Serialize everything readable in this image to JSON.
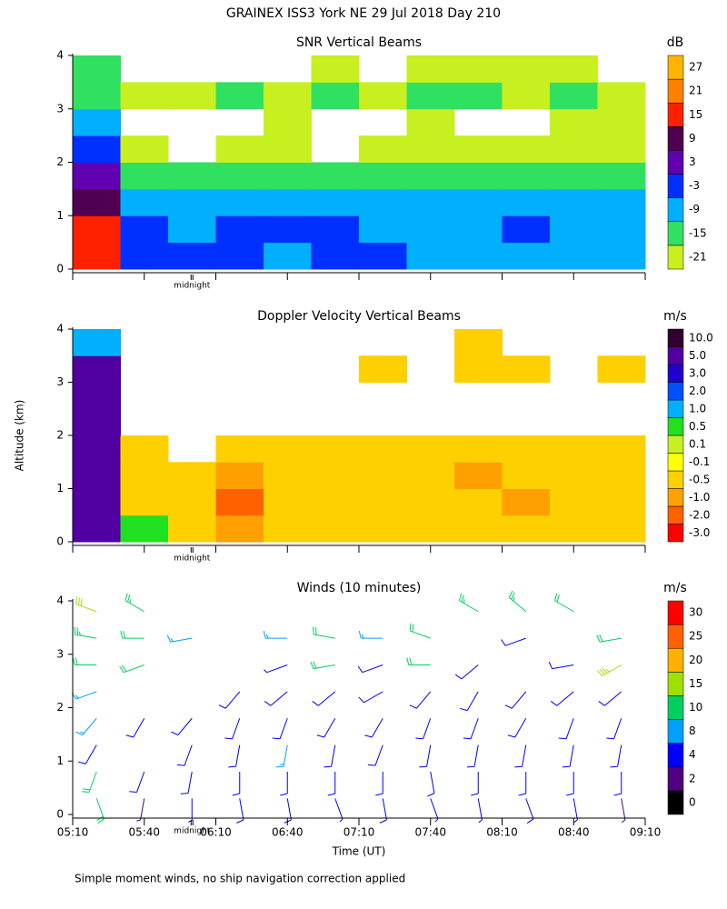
{
  "title": "GRAINEX ISS3 York NE  29 Jul 2018 Day 210",
  "footnote": "Simple moment winds, no ship navigation correction applied",
  "chart_data": [
    {
      "type": "heatmap",
      "title": "SNR Vertical Beams",
      "xlim": [
        310,
        550
      ],
      "xticks": [
        310,
        340,
        370,
        400,
        430,
        460,
        490,
        520,
        550
      ],
      "ylim": [
        0,
        4
      ],
      "yticks": [
        0,
        1,
        2,
        3,
        4
      ],
      "annotations": [
        {
          "x": 360,
          "text": "midnight"
        }
      ],
      "x_edges": [
        310,
        330,
        350,
        370,
        390,
        410,
        430,
        450,
        470,
        490,
        510,
        530,
        550
      ],
      "y_edges": [
        0,
        0.5,
        1,
        1.5,
        2,
        2.5,
        3,
        3.5,
        4
      ],
      "z": [
        [
          15,
          -3,
          -3,
          -3,
          -9,
          -3,
          -3,
          -9,
          -9,
          -9,
          -9,
          -9
        ],
        [
          15,
          -3,
          -9,
          -3,
          -3,
          -3,
          -9,
          -9,
          -9,
          -3,
          -9,
          -9
        ],
        [
          9,
          -9,
          -9,
          -9,
          -9,
          -9,
          -9,
          -9,
          -9,
          -9,
          -9,
          -9
        ],
        [
          3,
          -15,
          -15,
          -15,
          -15,
          -15,
          -15,
          -15,
          -15,
          -15,
          -15,
          -15
        ],
        [
          -3,
          -21,
          null,
          -21,
          -21,
          null,
          -21,
          -21,
          -21,
          -21,
          -21,
          -21
        ],
        [
          -9,
          null,
          null,
          null,
          -21,
          null,
          null,
          -21,
          null,
          null,
          -21,
          -21
        ],
        [
          -15,
          -21,
          -21,
          -15,
          -21,
          -15,
          -21,
          -15,
          -15,
          -21,
          -15,
          -21
        ],
        [
          -15,
          null,
          null,
          null,
          null,
          -21,
          null,
          -21,
          -21,
          -21,
          -21,
          null
        ]
      ],
      "colorbar": {
        "title": "dB",
        "levels": [
          -21,
          -15,
          -9,
          -3,
          3,
          9,
          15,
          21,
          27
        ],
        "colors": [
          "#c8f020",
          "#30e060",
          "#00b0ff",
          "#0030ff",
          "#6000b0",
          "#500050",
          "#ff2000",
          "#ff8000",
          "#ffb400"
        ]
      }
    },
    {
      "type": "heatmap",
      "title": "Doppler Velocity Vertical Beams",
      "ylabel": "Altitude (km)",
      "xlim": [
        310,
        550
      ],
      "xticks": [
        310,
        340,
        370,
        400,
        430,
        460,
        490,
        520,
        550
      ],
      "ylim": [
        0,
        4
      ],
      "yticks": [
        0,
        1,
        2,
        3,
        4
      ],
      "annotations": [
        {
          "x": 360,
          "text": "midnight"
        }
      ],
      "x_edges": [
        310,
        330,
        350,
        370,
        390,
        410,
        430,
        450,
        470,
        490,
        510,
        530,
        550
      ],
      "y_edges": [
        0,
        0.5,
        1,
        1.5,
        2,
        2.5,
        3,
        3.5,
        4
      ],
      "z": [
        [
          5,
          0.5,
          -0.5,
          -1,
          -0.5,
          -0.5,
          -0.5,
          -0.5,
          -0.5,
          -0.5,
          -0.5,
          -0.5
        ],
        [
          5,
          -0.5,
          -0.5,
          -2,
          -0.5,
          -0.5,
          -0.5,
          -0.5,
          -0.5,
          -1,
          -0.5,
          -0.5
        ],
        [
          5,
          -0.5,
          -0.5,
          -1,
          -0.5,
          -0.5,
          -0.5,
          -0.5,
          -1,
          -0.5,
          -0.5,
          -0.5
        ],
        [
          5,
          -0.5,
          null,
          -0.5,
          -0.5,
          -0.5,
          -0.5,
          -0.5,
          -0.5,
          -0.5,
          -0.5,
          -0.5
        ],
        [
          5,
          null,
          null,
          null,
          null,
          null,
          null,
          null,
          null,
          null,
          null,
          null
        ],
        [
          5,
          null,
          null,
          null,
          null,
          null,
          null,
          null,
          null,
          null,
          null,
          null
        ],
        [
          5,
          null,
          null,
          null,
          null,
          null,
          -0.5,
          null,
          -0.5,
          -0.5,
          null,
          -0.5
        ],
        [
          1,
          null,
          null,
          null,
          null,
          null,
          null,
          null,
          -0.5,
          null,
          null,
          null
        ]
      ],
      "colorbar": {
        "title": "m/s",
        "levels": [
          {
            "value": -3,
            "label": "-3.0"
          },
          {
            "value": -2,
            "label": "-2.0"
          },
          {
            "value": -1,
            "label": "-1.0"
          },
          -0.5,
          -0.1,
          0.1,
          0.5,
          {
            "value": 1,
            "label": "1.0"
          },
          {
            "value": 2,
            "label": "2.0"
          },
          {
            "value": 3,
            "label": "3.0"
          },
          {
            "value": 5,
            "label": "5.0"
          },
          {
            "value": 10,
            "label": "10.0"
          }
        ],
        "colors": [
          "#ff0000",
          "#ff6000",
          "#ffa000",
          "#ffd000",
          "#ffff00",
          "#c8f020",
          "#20e020",
          "#00b0ff",
          "#0050ff",
          "#2000d0",
          "#5000a0",
          "#300030"
        ]
      }
    },
    {
      "type": "barbs",
      "title": "Winds (10 minutes)",
      "xlabel": "Time (UT)",
      "xlim": [
        310,
        550
      ],
      "xticks": [
        {
          "value": 310,
          "label": "05:10"
        },
        {
          "value": 340,
          "label": "05:40"
        },
        {
          "value": 370,
          "label": "06:10"
        },
        {
          "value": 400,
          "label": "06:40"
        },
        {
          "value": 430,
          "label": "07:10"
        },
        {
          "value": 460,
          "label": "07:40"
        },
        {
          "value": 490,
          "label": "08:10"
        },
        {
          "value": 520,
          "label": "08:40"
        },
        {
          "value": 550,
          "label": "09:10"
        }
      ],
      "ylim": [
        0,
        4
      ],
      "yticks": [
        0,
        1,
        2,
        3,
        4
      ],
      "annotations": [
        {
          "x": 360,
          "text": "midnight"
        }
      ],
      "heights": [
        0.3,
        0.8,
        1.3,
        1.8,
        2.3,
        2.8,
        3.3,
        3.8
      ],
      "profiles": [
        {
          "x": 320,
          "speed": [
            12,
            10,
            6,
            8,
            9,
            12,
            14,
            16
          ],
          "direction": [
            160,
            200,
            210,
            220,
            250,
            270,
            280,
            290
          ]
        },
        {
          "x": 340,
          "speed": [
            3,
            5,
            null,
            6,
            null,
            10,
            12,
            14
          ],
          "direction": [
            190,
            200,
            null,
            210,
            null,
            250,
            270,
            300
          ]
        },
        {
          "x": 360,
          "speed": [
            4,
            6,
            6,
            5,
            null,
            null,
            9,
            null
          ],
          "direction": [
            180,
            190,
            200,
            220,
            null,
            null,
            260,
            null
          ]
        },
        {
          "x": 380,
          "speed": [
            5,
            6,
            7,
            6,
            5,
            null,
            null,
            null
          ],
          "direction": [
            170,
            180,
            190,
            200,
            220,
            null,
            null,
            null
          ]
        },
        {
          "x": 400,
          "speed": [
            5,
            7,
            8,
            7,
            6,
            4,
            9,
            null
          ],
          "direction": [
            170,
            180,
            190,
            200,
            230,
            250,
            270,
            null
          ]
        },
        {
          "x": 420,
          "speed": [
            4,
            6,
            7,
            6,
            5,
            12,
            10,
            null
          ],
          "direction": [
            160,
            180,
            190,
            210,
            230,
            260,
            280,
            null
          ]
        },
        {
          "x": 440,
          "speed": [
            5,
            6,
            7,
            7,
            6,
            5,
            8,
            null
          ],
          "direction": [
            170,
            180,
            200,
            210,
            240,
            250,
            270,
            null
          ]
        },
        {
          "x": 460,
          "speed": [
            4,
            6,
            7,
            6,
            5,
            12,
            10,
            null
          ],
          "direction": [
            160,
            170,
            190,
            200,
            220,
            270,
            290,
            null
          ]
        },
        {
          "x": 480,
          "speed": [
            4,
            6,
            7,
            7,
            6,
            5,
            null,
            13
          ],
          "direction": [
            170,
            180,
            190,
            200,
            210,
            230,
            null,
            300
          ]
        },
        {
          "x": 500,
          "speed": [
            5,
            6,
            7,
            6,
            5,
            null,
            6,
            14
          ],
          "direction": [
            160,
            180,
            190,
            210,
            220,
            null,
            250,
            310
          ]
        },
        {
          "x": 520,
          "speed": [
            4,
            6,
            7,
            7,
            5,
            6,
            null,
            12
          ],
          "direction": [
            170,
            180,
            190,
            200,
            230,
            260,
            null,
            300
          ]
        },
        {
          "x": 540,
          "speed": [
            3,
            5,
            6,
            7,
            6,
            18,
            12,
            null
          ],
          "direction": [
            170,
            180,
            190,
            200,
            230,
            240,
            260,
            null
          ]
        }
      ],
      "colorbar": {
        "title": "m/s",
        "levels": [
          0,
          2,
          4,
          8,
          10,
          15,
          20,
          25,
          30
        ],
        "colors": [
          "#000000",
          "#500080",
          "#0000ff",
          "#00a0ff",
          "#00d060",
          "#a0e000",
          "#ffb000",
          "#ff6000",
          "#ff0000"
        ]
      }
    }
  ]
}
